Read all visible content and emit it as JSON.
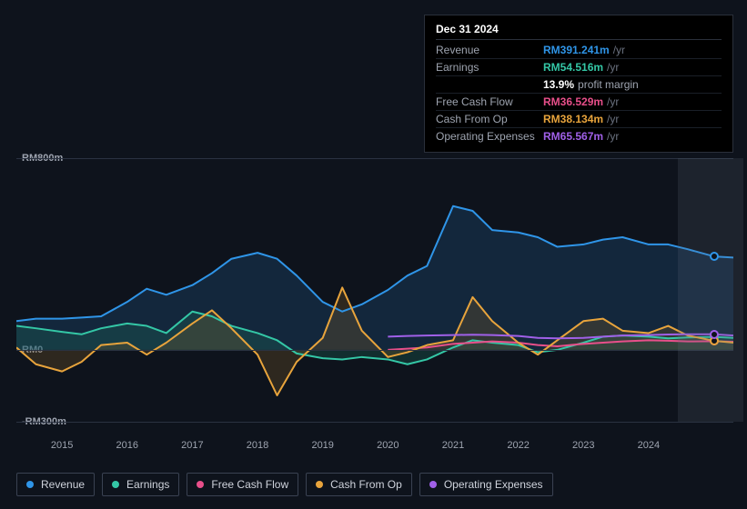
{
  "tooltip": {
    "date": "Dec 31 2024",
    "rows": [
      {
        "label": "Revenue",
        "value": "RM391.241m",
        "unit": "/yr",
        "color": "#2f95e8"
      },
      {
        "label": "Earnings",
        "value": "RM54.516m",
        "unit": "/yr",
        "color": "#34c7a6"
      },
      {
        "label": "",
        "value": "13.9%",
        "sub": "profit margin",
        "color": "#ffffff"
      },
      {
        "label": "Free Cash Flow",
        "value": "RM36.529m",
        "unit": "/yr",
        "color": "#e84f8a"
      },
      {
        "label": "Cash From Op",
        "value": "RM38.134m",
        "unit": "/yr",
        "color": "#e8a43c"
      },
      {
        "label": "Operating Expenses",
        "value": "RM65.567m",
        "unit": "/yr",
        "color": "#a060e8"
      }
    ]
  },
  "chart": {
    "background": "#0e131c",
    "grid_color": "#2a3241",
    "ylim": [
      -300,
      800
    ],
    "y_ticks": [
      {
        "v": 800,
        "label": "RM800m"
      },
      {
        "v": 0,
        "label": "RM0"
      },
      {
        "v": -300,
        "label": "-RM300m"
      }
    ],
    "x_years": [
      2015,
      2016,
      2017,
      2018,
      2019,
      2020,
      2021,
      2022,
      2023,
      2024
    ],
    "x_range": [
      2014.3,
      2025.3
    ],
    "marker_x": 2024.95,
    "series": [
      {
        "name": "Revenue",
        "color": "#2f95e8",
        "fill": "#1c4d77",
        "fill_opacity": 0.35,
        "data": [
          [
            2014.3,
            120
          ],
          [
            2014.6,
            130
          ],
          [
            2015.0,
            130
          ],
          [
            2015.3,
            135
          ],
          [
            2015.6,
            140
          ],
          [
            2016.0,
            200
          ],
          [
            2016.3,
            255
          ],
          [
            2016.6,
            230
          ],
          [
            2017.0,
            270
          ],
          [
            2017.3,
            320
          ],
          [
            2017.6,
            380
          ],
          [
            2018.0,
            405
          ],
          [
            2018.3,
            380
          ],
          [
            2018.6,
            310
          ],
          [
            2019.0,
            200
          ],
          [
            2019.3,
            160
          ],
          [
            2019.6,
            190
          ],
          [
            2020.0,
            250
          ],
          [
            2020.3,
            310
          ],
          [
            2020.6,
            350
          ],
          [
            2021.0,
            600
          ],
          [
            2021.3,
            580
          ],
          [
            2021.6,
            500
          ],
          [
            2022.0,
            490
          ],
          [
            2022.3,
            470
          ],
          [
            2022.6,
            430
          ],
          [
            2023.0,
            440
          ],
          [
            2023.3,
            460
          ],
          [
            2023.6,
            470
          ],
          [
            2024.0,
            440
          ],
          [
            2024.3,
            440
          ],
          [
            2024.6,
            420
          ],
          [
            2025.0,
            390
          ],
          [
            2025.3,
            385
          ]
        ]
      },
      {
        "name": "Earnings",
        "color": "#34c7a6",
        "fill": "#1e6e5c",
        "fill_opacity": 0.3,
        "data": [
          [
            2014.3,
            100
          ],
          [
            2014.6,
            90
          ],
          [
            2015.0,
            75
          ],
          [
            2015.3,
            65
          ],
          [
            2015.6,
            90
          ],
          [
            2016.0,
            110
          ],
          [
            2016.3,
            100
          ],
          [
            2016.6,
            70
          ],
          [
            2017.0,
            160
          ],
          [
            2017.3,
            140
          ],
          [
            2017.6,
            100
          ],
          [
            2018.0,
            70
          ],
          [
            2018.3,
            40
          ],
          [
            2018.6,
            -15
          ],
          [
            2019.0,
            -35
          ],
          [
            2019.3,
            -40
          ],
          [
            2019.6,
            -30
          ],
          [
            2020.0,
            -40
          ],
          [
            2020.3,
            -60
          ],
          [
            2020.6,
            -40
          ],
          [
            2021.0,
            10
          ],
          [
            2021.3,
            40
          ],
          [
            2021.6,
            30
          ],
          [
            2022.0,
            20
          ],
          [
            2022.3,
            -10
          ],
          [
            2022.6,
            0
          ],
          [
            2023.0,
            30
          ],
          [
            2023.3,
            55
          ],
          [
            2023.6,
            60
          ],
          [
            2024.0,
            55
          ],
          [
            2024.3,
            48
          ],
          [
            2024.6,
            52
          ],
          [
            2025.0,
            54
          ],
          [
            2025.3,
            50
          ]
        ]
      },
      {
        "name": "Free Cash Flow",
        "color": "#e84f8a",
        "fill": "#7a2a48",
        "fill_opacity": 0.0,
        "data": [
          [
            2020.0,
            0
          ],
          [
            2020.3,
            5
          ],
          [
            2020.6,
            10
          ],
          [
            2021.0,
            25
          ],
          [
            2021.3,
            30
          ],
          [
            2021.6,
            35
          ],
          [
            2022.0,
            30
          ],
          [
            2022.3,
            20
          ],
          [
            2022.6,
            15
          ],
          [
            2023.0,
            25
          ],
          [
            2023.3,
            30
          ],
          [
            2023.6,
            35
          ],
          [
            2024.0,
            40
          ],
          [
            2024.3,
            38
          ],
          [
            2024.6,
            35
          ],
          [
            2025.0,
            36
          ],
          [
            2025.3,
            34
          ]
        ]
      },
      {
        "name": "Cash From Op",
        "color": "#e8a43c",
        "fill": "#7a5a28",
        "fill_opacity": 0.3,
        "data": [
          [
            2014.3,
            10
          ],
          [
            2014.6,
            -60
          ],
          [
            2015.0,
            -90
          ],
          [
            2015.3,
            -50
          ],
          [
            2015.6,
            20
          ],
          [
            2016.0,
            30
          ],
          [
            2016.3,
            -20
          ],
          [
            2016.6,
            30
          ],
          [
            2017.0,
            110
          ],
          [
            2017.3,
            165
          ],
          [
            2017.6,
            90
          ],
          [
            2018.0,
            -20
          ],
          [
            2018.3,
            -190
          ],
          [
            2018.6,
            -50
          ],
          [
            2019.0,
            50
          ],
          [
            2019.3,
            260
          ],
          [
            2019.6,
            80
          ],
          [
            2020.0,
            -30
          ],
          [
            2020.3,
            -10
          ],
          [
            2020.6,
            20
          ],
          [
            2021.0,
            40
          ],
          [
            2021.3,
            220
          ],
          [
            2021.6,
            120
          ],
          [
            2022.0,
            30
          ],
          [
            2022.3,
            -20
          ],
          [
            2022.6,
            40
          ],
          [
            2023.0,
            120
          ],
          [
            2023.3,
            130
          ],
          [
            2023.6,
            80
          ],
          [
            2024.0,
            70
          ],
          [
            2024.3,
            100
          ],
          [
            2024.6,
            60
          ],
          [
            2025.0,
            38
          ],
          [
            2025.3,
            30
          ]
        ]
      },
      {
        "name": "Operating Expenses",
        "color": "#a060e8",
        "fill": "#4c2f73",
        "fill_opacity": 0.0,
        "data": [
          [
            2020.0,
            55
          ],
          [
            2020.3,
            58
          ],
          [
            2020.6,
            60
          ],
          [
            2021.0,
            62
          ],
          [
            2021.3,
            63
          ],
          [
            2021.6,
            62
          ],
          [
            2022.0,
            58
          ],
          [
            2022.3,
            50
          ],
          [
            2022.6,
            48
          ],
          [
            2023.0,
            50
          ],
          [
            2023.3,
            55
          ],
          [
            2023.6,
            60
          ],
          [
            2024.0,
            62
          ],
          [
            2024.3,
            64
          ],
          [
            2024.6,
            65
          ],
          [
            2025.0,
            65
          ],
          [
            2025.3,
            60
          ]
        ]
      }
    ]
  },
  "legend": [
    {
      "label": "Revenue",
      "color": "#2f95e8"
    },
    {
      "label": "Earnings",
      "color": "#34c7a6"
    },
    {
      "label": "Free Cash Flow",
      "color": "#e84f8a"
    },
    {
      "label": "Cash From Op",
      "color": "#e8a43c"
    },
    {
      "label": "Operating Expenses",
      "color": "#a060e8"
    }
  ]
}
